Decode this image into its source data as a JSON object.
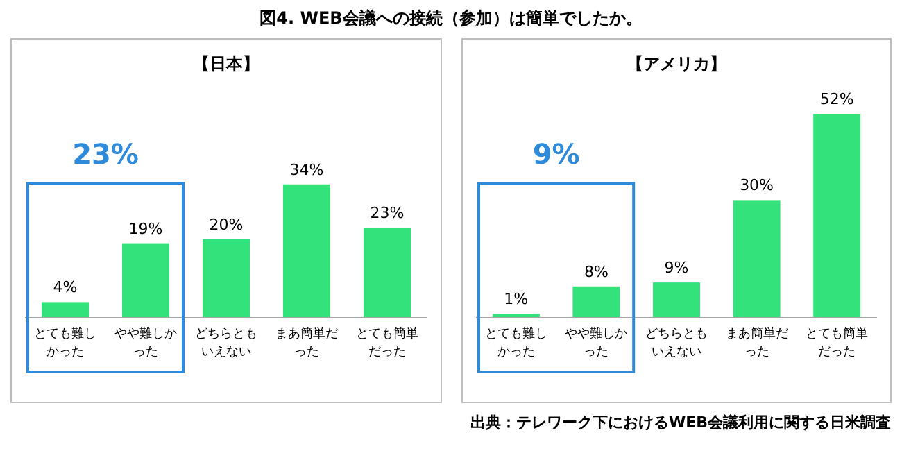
{
  "chart_data": [
    {
      "type": "bar",
      "title": "【日本】",
      "categories": [
        "とても難しかった",
        "やや難しかった",
        "どちらともいえない",
        "まあ簡単だった",
        "とても簡単だった"
      ],
      "values": [
        4,
        19,
        20,
        34,
        23
      ],
      "value_labels": [
        "4%",
        "19%",
        "20%",
        "34%",
        "23%"
      ],
      "color": "#33e27a",
      "annotations": [
        "図4. WEB会議への接続（参加）は簡単でしたか。",
        "23%"
      ]
    },
    {
      "type": "bar",
      "title": "【アメリカ】",
      "categories": [
        "とても難しかった",
        "やや難しかった",
        "どちらともいえない",
        "まあ簡単だった",
        "とても簡単だった"
      ],
      "values": [
        1,
        8,
        9,
        30,
        52
      ],
      "value_labels": [
        "1%",
        "8%",
        "9%",
        "30%",
        "52%"
      ],
      "color": "#33e27a",
      "annotations": [
        "9%",
        "出典：テレワーク下におけるWEB会議利用に関する日米調査"
      ]
    }
  ]
}
